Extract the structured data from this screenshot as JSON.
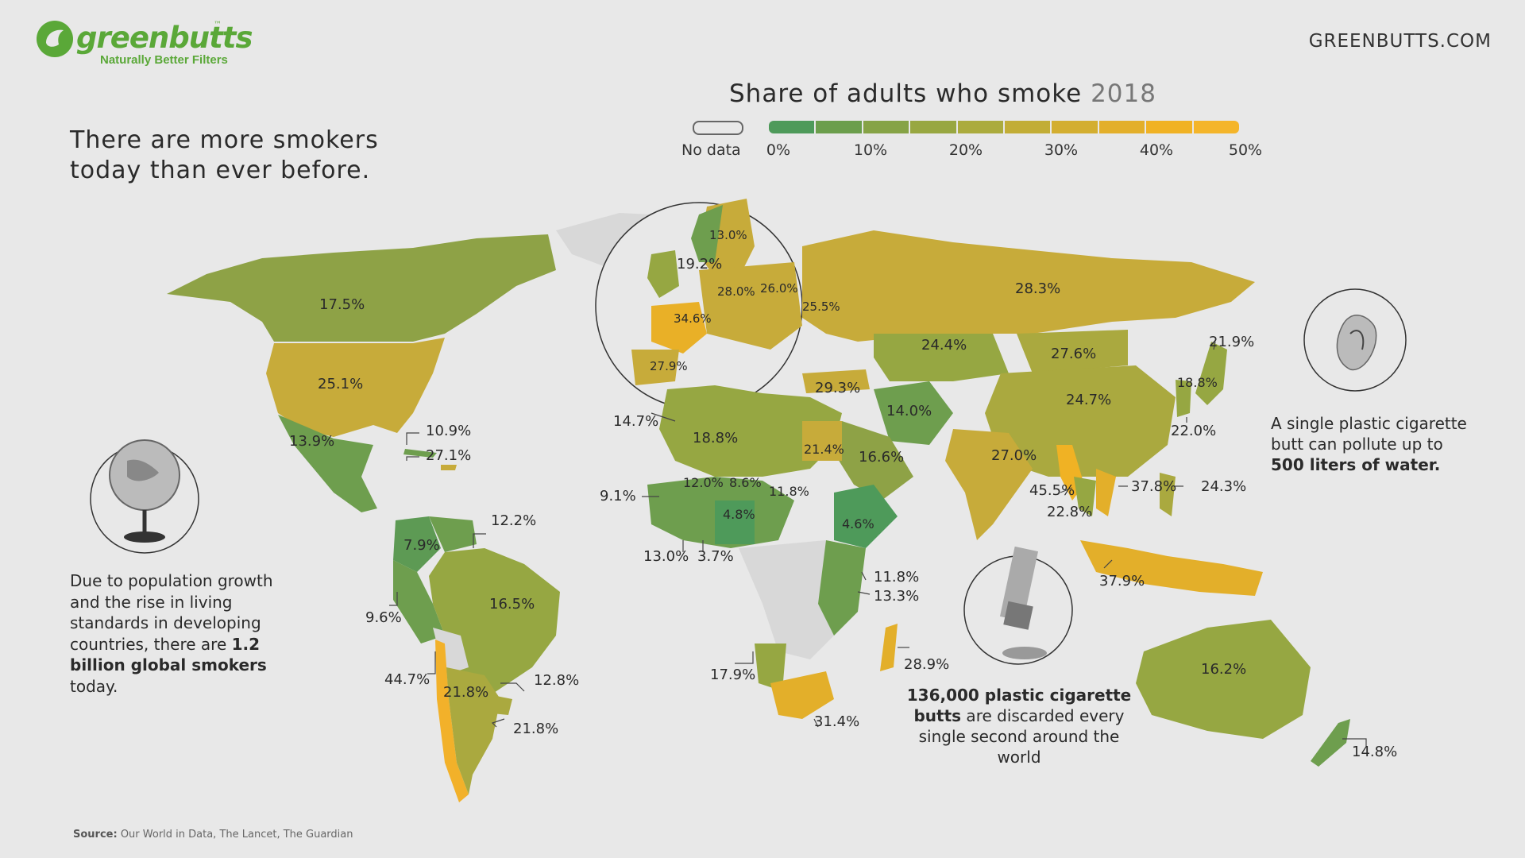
{
  "brand": {
    "name": "greenbutts",
    "trademark": "™",
    "tagline": "Naturally Better Filters",
    "color": "#5aa838"
  },
  "site_url": "GREENBUTTS.COM",
  "headline_lines": [
    "There are more smokers",
    "today than ever before."
  ],
  "legend": {
    "title": "Share of adults who smoke",
    "year": "2018",
    "no_data_label": "No data",
    "ticks": [
      "0%",
      "10%",
      "20%",
      "30%",
      "40%",
      "50%"
    ],
    "colors": [
      "#4e9a5a",
      "#6b9e4c",
      "#86a346",
      "#98a741",
      "#abab3d",
      "#c2ad36",
      "#d3ae30",
      "#e3af2a",
      "#f0b224",
      "#f4b52a"
    ],
    "no_data_color": "#d8d8d8"
  },
  "countries": [
    {
      "name": "Canada",
      "value": "17.5%"
    },
    {
      "name": "United States",
      "value": "25.1%"
    },
    {
      "name": "Mexico",
      "value": "13.9%"
    },
    {
      "name": "Cuba",
      "value": "10.9%"
    },
    {
      "name": "Dominican Republic",
      "value": "27.1%"
    },
    {
      "name": "Colombia",
      "value": "7.9%"
    },
    {
      "name": "Venezuela",
      "value": "12.2%"
    },
    {
      "name": "Peru",
      "value": "9.6%"
    },
    {
      "name": "Brazil",
      "value": "16.5%"
    },
    {
      "name": "Chile",
      "value": "44.7%"
    },
    {
      "name": "Argentina",
      "value": "21.8%"
    },
    {
      "name": "Uruguay",
      "value": "21.8%"
    },
    {
      "name": "Uruguay / Brazil border",
      "value": "12.8%"
    },
    {
      "name": "Norway",
      "value": "13.0%"
    },
    {
      "name": "United Kingdom",
      "value": "19.2%"
    },
    {
      "name": "Germany",
      "value": "28.0%"
    },
    {
      "name": "Poland",
      "value": "26.0%"
    },
    {
      "name": "Ukraine",
      "value": "25.5%"
    },
    {
      "name": "France",
      "value": "34.6%"
    },
    {
      "name": "Spain",
      "value": "27.9%"
    },
    {
      "name": "Russia",
      "value": "28.3%"
    },
    {
      "name": "Kazakhstan",
      "value": "24.4%"
    },
    {
      "name": "Mongolia",
      "value": "27.6%"
    },
    {
      "name": "China",
      "value": "24.7%"
    },
    {
      "name": "Turkey",
      "value": "29.3%"
    },
    {
      "name": "Iran",
      "value": "14.0%"
    },
    {
      "name": "Saudi Arabia",
      "value": "16.6%"
    },
    {
      "name": "India",
      "value": "27.0%"
    },
    {
      "name": "Egypt",
      "value": "21.4%"
    },
    {
      "name": "Morocco",
      "value": "14.7%"
    },
    {
      "name": "Algeria",
      "value": "18.8%"
    },
    {
      "name": "Mali",
      "value": "12.0%"
    },
    {
      "name": "Niger",
      "value": "8.6%"
    },
    {
      "name": "Chad",
      "value": "11.8%"
    },
    {
      "name": "Nigeria",
      "value": "4.8%"
    },
    {
      "name": "Ethiopia",
      "value": "4.6%"
    },
    {
      "name": "Senegal",
      "value": "9.1%"
    },
    {
      "name": "Ivory Coast",
      "value": "13.0%"
    },
    {
      "name": "Ghana",
      "value": "3.7%"
    },
    {
      "name": "Kenya",
      "value": "11.8%"
    },
    {
      "name": "Tanzania",
      "value": "13.3%"
    },
    {
      "name": "Namibia",
      "value": "17.9%"
    },
    {
      "name": "South Africa",
      "value": "31.4%"
    },
    {
      "name": "Madagascar",
      "value": "28.9%"
    },
    {
      "name": "Myanmar",
      "value": "45.5%"
    },
    {
      "name": "Thailand",
      "value": "22.8%"
    },
    {
      "name": "Vietnam",
      "value": "37.8%"
    },
    {
      "name": "Philippines",
      "value": "24.3%"
    },
    {
      "name": "Indonesia",
      "value": "37.9%"
    },
    {
      "name": "Japan",
      "value": "21.9%"
    },
    {
      "name": "North Korea",
      "value": "18.8%"
    },
    {
      "name": "South Korea",
      "value": "22.0%"
    },
    {
      "name": "Australia",
      "value": "16.2%"
    },
    {
      "name": "New Zealand",
      "value": "14.8%"
    }
  ],
  "globe_caption": {
    "text_before": "Due to population growth and the rise in living standards in developing countries, there are ",
    "bold": "1.2 billion global smokers",
    "text_after": " today."
  },
  "water_caption": {
    "text_before": "A single plastic cigarette butt can pollute up to ",
    "bold": "500 liters of water."
  },
  "butts_caption": {
    "bold": "136,000 plastic cigarette butts",
    "text_after": " are discarded every single second around the world"
  },
  "source": {
    "label": "Source:",
    "text": " Our World in Data, The Lancet, The Guardian"
  }
}
